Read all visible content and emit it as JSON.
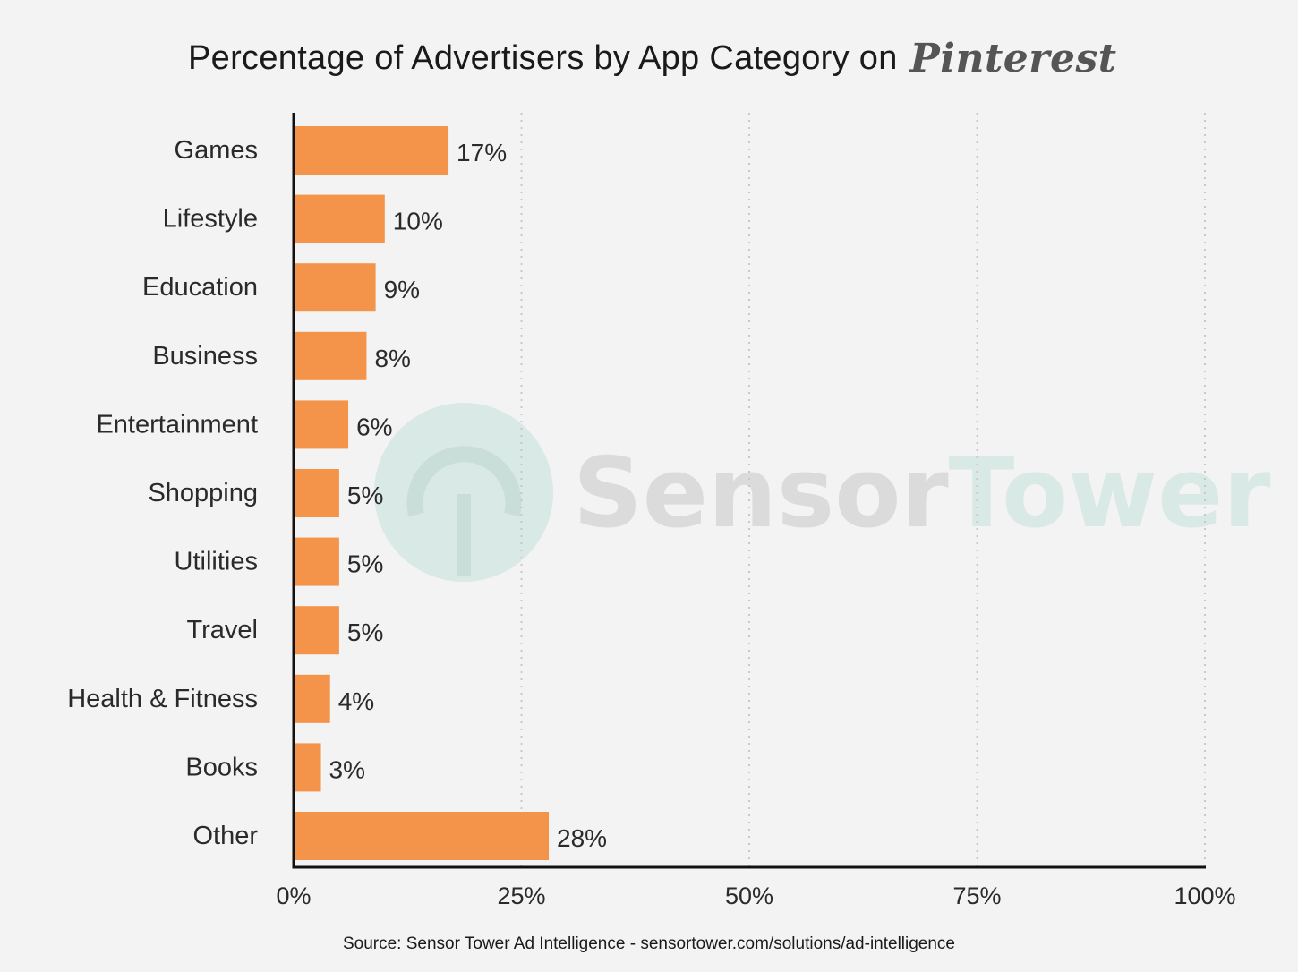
{
  "title": "Percentage of Advertisers by App Category on",
  "brand": "Pinterest",
  "watermark": {
    "part1": "Sensor",
    "part2": "Tower"
  },
  "source": "Source: Sensor Tower Ad Intelligence - sensortower.com/solutions/ad-intelligence",
  "colors": {
    "bar": "#f4944a",
    "axis": "#111111",
    "grid": "#c8c8c8",
    "watermark_gray": "#d3d3d3",
    "watermark_teal": "#cfe6e2"
  },
  "chart_data": {
    "type": "bar",
    "orientation": "horizontal",
    "categories": [
      "Games",
      "Lifestyle",
      "Education",
      "Business",
      "Entertainment",
      "Shopping",
      "Utilities",
      "Travel",
      "Health & Fitness",
      "Books",
      "Other"
    ],
    "values": [
      17,
      10,
      9,
      8,
      6,
      5,
      5,
      5,
      4,
      3,
      28
    ],
    "value_labels": [
      "17%",
      "10%",
      "9%",
      "8%",
      "6%",
      "5%",
      "5%",
      "5%",
      "4%",
      "3%",
      "28%"
    ],
    "xlim": [
      0,
      100
    ],
    "xticks": [
      0,
      25,
      50,
      75,
      100
    ],
    "xtick_labels": [
      "0%",
      "25%",
      "50%",
      "75%",
      "100%"
    ],
    "grid": true,
    "legend": "none"
  }
}
